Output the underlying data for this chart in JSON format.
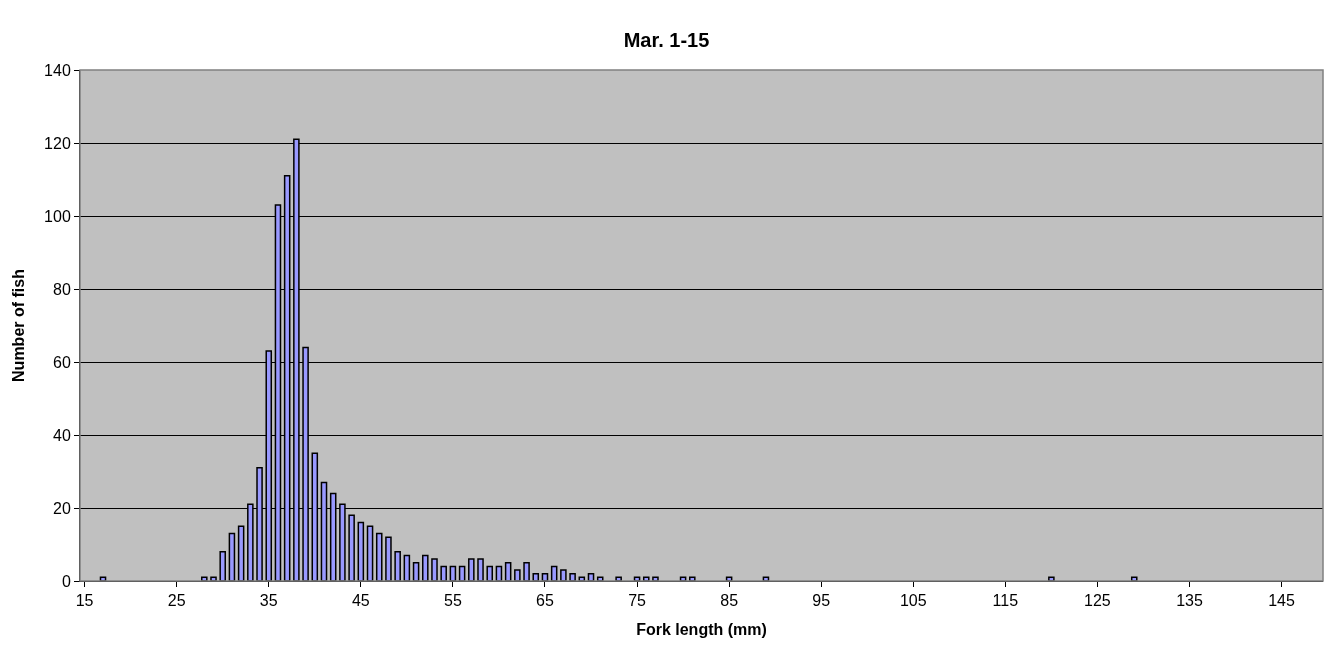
{
  "chart_data": {
    "type": "bar",
    "title": "Mar. 1-15",
    "xlabel": "Fork length (mm)",
    "ylabel": "Number of fish",
    "categories": [
      "15",
      null,
      null,
      null,
      null,
      null,
      null,
      null,
      null,
      null,
      "25",
      null,
      null,
      null,
      null,
      null,
      null,
      null,
      null,
      null,
      "35",
      null,
      null,
      null,
      null,
      null,
      null,
      null,
      null,
      null,
      "45",
      null,
      null,
      null,
      null,
      null,
      null,
      null,
      null,
      null,
      "55",
      null,
      null,
      null,
      null,
      null,
      null,
      null,
      null,
      null,
      "65",
      null,
      null,
      null,
      null,
      null,
      null,
      null,
      null,
      null,
      "75",
      null,
      null,
      null,
      null,
      null,
      null,
      null,
      null,
      null,
      "85",
      null,
      null,
      null,
      null,
      null,
      null,
      null,
      null,
      null,
      "95",
      null,
      null,
      null,
      null,
      null,
      null,
      null,
      null,
      null,
      "105",
      null,
      null,
      null,
      null,
      null,
      null,
      null,
      null,
      null,
      "115",
      null,
      null,
      null,
      null,
      null,
      null,
      null,
      null,
      null,
      "125",
      null,
      null,
      null,
      null,
      null,
      null,
      null,
      null,
      null,
      "135",
      null,
      null,
      null,
      null,
      null,
      null,
      null,
      null,
      null,
      "145",
      null,
      null,
      null,
      null
    ],
    "values": [
      0,
      0,
      1,
      0,
      0,
      0,
      0,
      0,
      0,
      0,
      0,
      0,
      0,
      1,
      1,
      8,
      13,
      15,
      21,
      31,
      63,
      103,
      111,
      121,
      64,
      35,
      27,
      24,
      21,
      18,
      16,
      15,
      13,
      12,
      8,
      7,
      5,
      7,
      6,
      4,
      4,
      4,
      6,
      6,
      4,
      4,
      5,
      3,
      5,
      2,
      2,
      4,
      3,
      2,
      1,
      2,
      1,
      0,
      1,
      0,
      1,
      1,
      1,
      0,
      0,
      1,
      1,
      0,
      0,
      0,
      1,
      0,
      0,
      0,
      1,
      0,
      0,
      0,
      0,
      0,
      0,
      0,
      0,
      0,
      0,
      0,
      0,
      0,
      0,
      0,
      0,
      0,
      0,
      0,
      0,
      0,
      0,
      0,
      0,
      0,
      0,
      0,
      0,
      0,
      0,
      1,
      0,
      0,
      0,
      0,
      0,
      0,
      0,
      0,
      1,
      0,
      0,
      0,
      0,
      0,
      0,
      0,
      0,
      0,
      0,
      0,
      0,
      0,
      0,
      0,
      0,
      0,
      0,
      0,
      0
    ],
    "color": "#9999ff",
    "ylim": [
      0,
      140
    ],
    "yticks": [
      0,
      20,
      40,
      60,
      80,
      100,
      120,
      140
    ],
    "grid": "y"
  }
}
